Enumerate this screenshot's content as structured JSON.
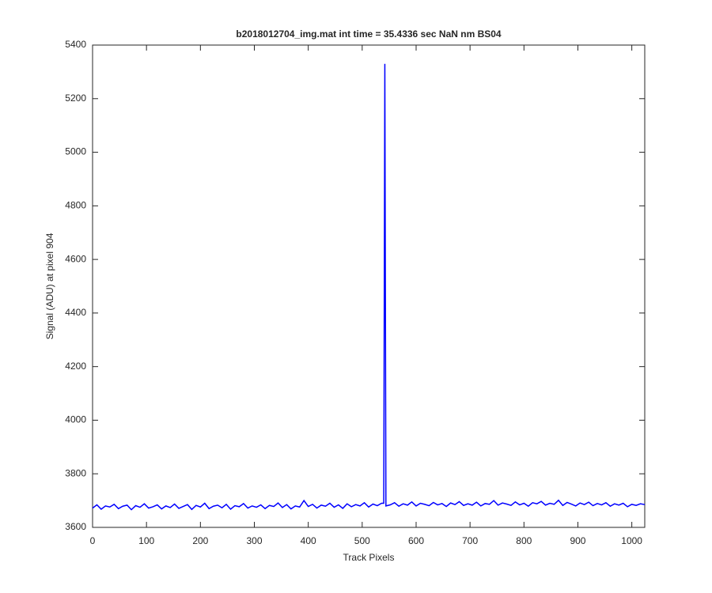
{
  "chart_data": {
    "type": "line",
    "title": "b2018012704_img.mat int time = 35.4336 sec  NaN nm BS04",
    "xlabel": "Track Pixels",
    "ylabel": "Signal (ADU) at pixel 904",
    "xlim": [
      0,
      1024
    ],
    "ylim": [
      3600,
      5400
    ],
    "xticks": [
      0,
      100,
      200,
      300,
      400,
      500,
      600,
      700,
      800,
      900,
      1000
    ],
    "yticks": [
      3600,
      3800,
      4000,
      4200,
      4400,
      4600,
      4800,
      5000,
      5200,
      5400
    ],
    "x": [
      0,
      8,
      16,
      24,
      32,
      40,
      48,
      56,
      64,
      72,
      80,
      88,
      96,
      104,
      112,
      120,
      128,
      136,
      144,
      152,
      160,
      168,
      176,
      184,
      192,
      200,
      208,
      216,
      224,
      232,
      240,
      248,
      256,
      264,
      272,
      280,
      288,
      296,
      304,
      312,
      320,
      328,
      336,
      344,
      352,
      360,
      368,
      376,
      384,
      392,
      400,
      408,
      416,
      424,
      432,
      440,
      448,
      456,
      464,
      472,
      480,
      488,
      496,
      504,
      512,
      520,
      528,
      536,
      540,
      542,
      544,
      552,
      560,
      568,
      576,
      584,
      592,
      600,
      608,
      616,
      624,
      632,
      640,
      648,
      656,
      664,
      672,
      680,
      688,
      696,
      704,
      712,
      720,
      728,
      736,
      744,
      752,
      760,
      768,
      776,
      784,
      792,
      800,
      808,
      816,
      824,
      832,
      840,
      848,
      856,
      864,
      872,
      880,
      888,
      896,
      904,
      912,
      920,
      928,
      936,
      944,
      952,
      960,
      968,
      976,
      984,
      992,
      1000,
      1008,
      1016,
      1024
    ],
    "series": [
      {
        "name": "Signal",
        "color": "#0000ff",
        "values": [
          3672,
          3684,
          3668,
          3680,
          3676,
          3686,
          3670,
          3679,
          3683,
          3666,
          3681,
          3675,
          3688,
          3672,
          3677,
          3684,
          3669,
          3680,
          3674,
          3687,
          3671,
          3678,
          3685,
          3667,
          3682,
          3676,
          3690,
          3670,
          3679,
          3683,
          3673,
          3686,
          3668,
          3681,
          3677,
          3689,
          3672,
          3680,
          3675,
          3684,
          3670,
          3682,
          3678,
          3691,
          3674,
          3685,
          3669,
          3680,
          3676,
          3700,
          3678,
          3686,
          3672,
          3683,
          3679,
          3690,
          3675,
          3684,
          3671,
          3688,
          3677,
          3685,
          3680,
          3692,
          3676,
          3687,
          3681,
          3690,
          3690,
          5330,
          3680,
          3684,
          3692,
          3679,
          3688,
          3683,
          3695,
          3680,
          3690,
          3686,
          3681,
          3693,
          3684,
          3689,
          3678,
          3691,
          3685,
          3696,
          3682,
          3688,
          3683,
          3694,
          3680,
          3689,
          3686,
          3700,
          3683,
          3691,
          3687,
          3682,
          3695,
          3684,
          3690,
          3679,
          3692,
          3688,
          3697,
          3683,
          3690,
          3686,
          3701,
          3682,
          3693,
          3687,
          3680,
          3691,
          3685,
          3694,
          3681,
          3689,
          3684,
          3692,
          3679,
          3688,
          3683,
          3690,
          3677,
          3686,
          3682,
          3688,
          3685
        ]
      }
    ]
  }
}
